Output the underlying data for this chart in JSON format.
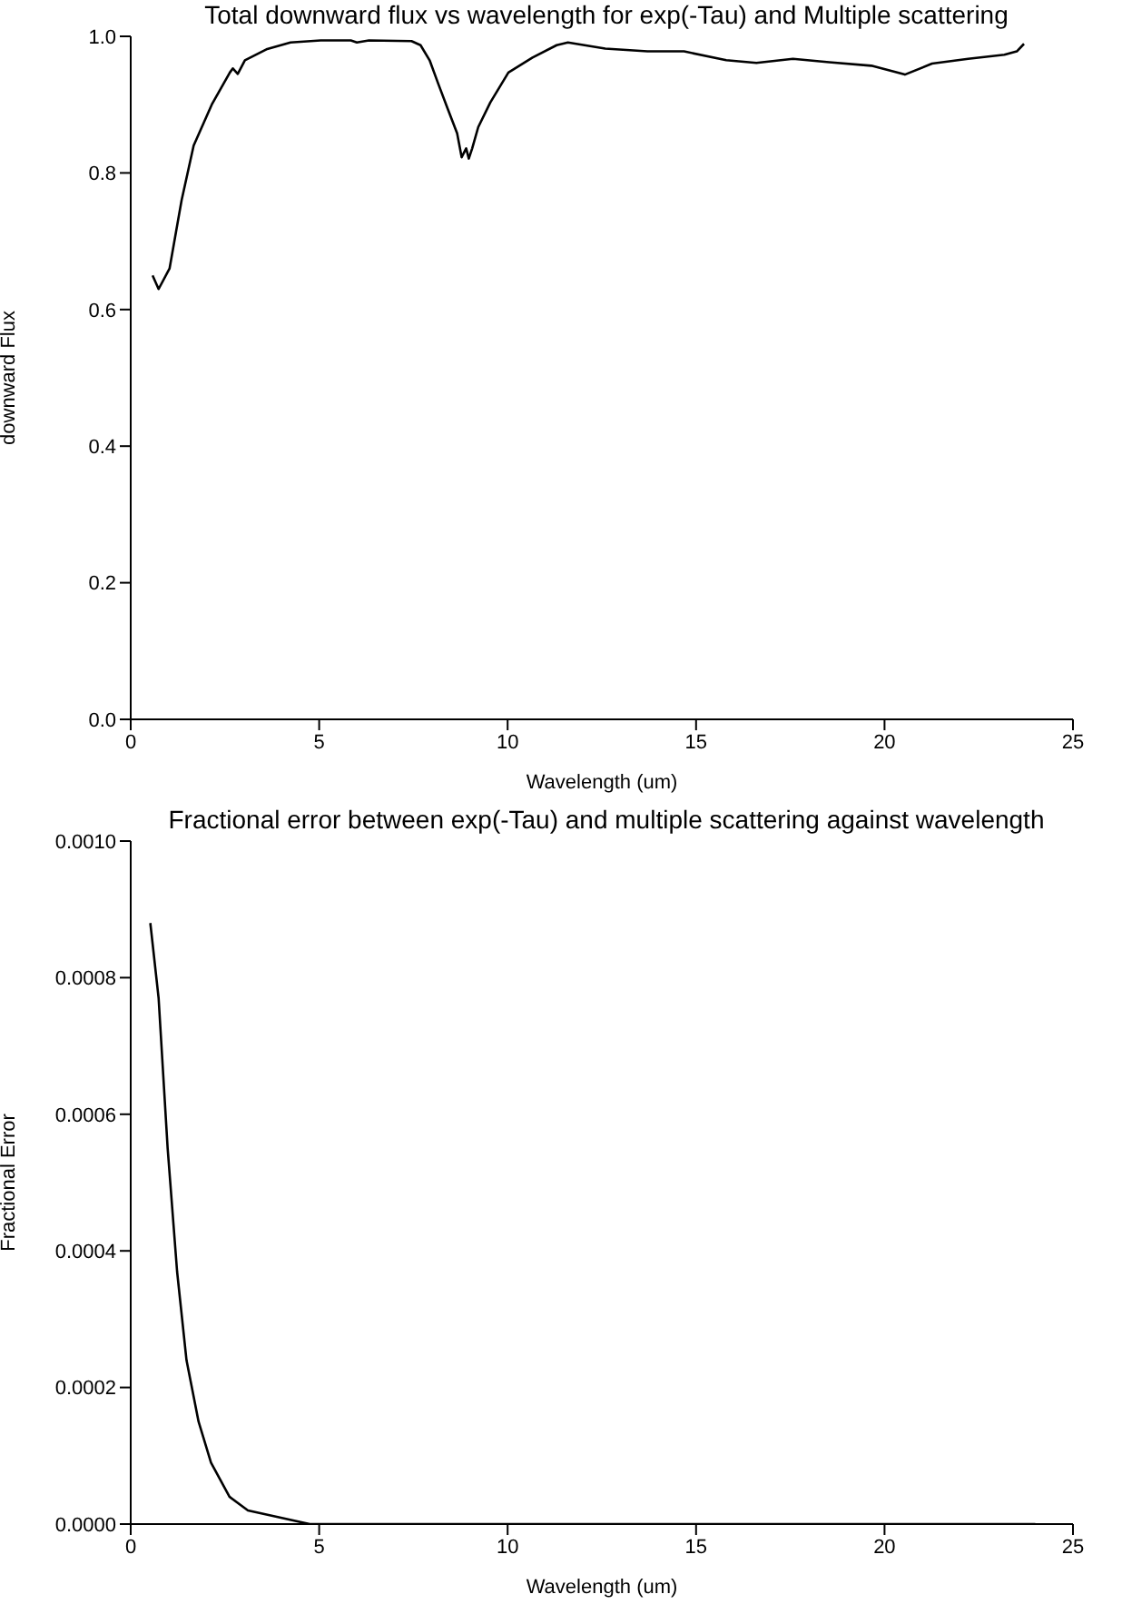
{
  "chart_data": [
    {
      "type": "line",
      "title": "Total downward flux vs wavelength for exp(-Tau) and Multiple scattering",
      "xlabel": "Wavelength (um)",
      "ylabel": "downward Flux",
      "xlim": [
        0,
        25
      ],
      "xticks": [
        0,
        5,
        10,
        15,
        20,
        25
      ],
      "ylim": [
        0,
        1
      ],
      "yticks": [
        {
          "value": 0,
          "label": "0.0"
        },
        {
          "value": 0.2,
          "label": "0.2"
        },
        {
          "value": 0.4,
          "label": "0.4"
        },
        {
          "value": 0.6,
          "label": "0.6"
        },
        {
          "value": 0.8,
          "label": "0.8"
        },
        {
          "value": 1,
          "label": "1.0"
        }
      ],
      "marker": "none",
      "line_style": "solid",
      "series": [
        {
          "color": "#000000",
          "x": [
            0.58,
            0.74,
            1.03,
            1.35,
            1.67,
            2.15,
            2.63,
            2.71,
            2.84,
            3.03,
            3.6,
            4.24,
            5.04,
            5.84,
            6.0,
            6.32,
            7.45,
            7.69,
            7.93,
            8.17,
            8.41,
            8.66,
            8.78,
            8.9,
            8.97,
            9.06,
            9.22,
            9.54,
            10.02,
            10.66,
            11.3,
            11.6,
            12.59,
            13.71,
            14.68,
            15.8,
            16.6,
            17.57,
            18.53,
            19.65,
            20.54,
            21.26,
            22.22,
            23.18,
            23.51,
            23.7
          ],
          "values": [
            0.65,
            0.63,
            0.66,
            0.76,
            0.84,
            0.9,
            0.947,
            0.953,
            0.945,
            0.965,
            0.981,
            0.991,
            0.994,
            0.994,
            0.991,
            0.994,
            0.993,
            0.987,
            0.965,
            0.929,
            0.894,
            0.858,
            0.823,
            0.836,
            0.821,
            0.836,
            0.867,
            0.903,
            0.947,
            0.969,
            0.987,
            0.991,
            0.982,
            0.978,
            0.978,
            0.965,
            0.961,
            0.967,
            0.962,
            0.957,
            0.944,
            0.96,
            0.967,
            0.973,
            0.978,
            0.989
          ]
        }
      ]
    },
    {
      "type": "line",
      "title": "Fractional error between exp(-Tau) and multiple scattering against wavelength",
      "xlabel": "Wavelength (um)",
      "ylabel": "Fractional Error",
      "xlim": [
        0,
        25
      ],
      "xticks": [
        0,
        5,
        10,
        15,
        20,
        25
      ],
      "ylim": [
        0,
        0.001
      ],
      "yticks": [
        {
          "value": 0,
          "label": "0.0000"
        },
        {
          "value": 0.0002,
          "label": "0.0002"
        },
        {
          "value": 0.0004,
          "label": "0.0004"
        },
        {
          "value": 0.0006,
          "label": "0.0006"
        },
        {
          "value": 0.0008,
          "label": "0.0008"
        },
        {
          "value": 0.001,
          "label": "0.0010"
        }
      ],
      "marker": "none",
      "line_style": "solid",
      "series": [
        {
          "color": "#000000",
          "x": [
            0.52,
            0.74,
            0.98,
            1.23,
            1.48,
            1.8,
            2.13,
            2.62,
            3.11,
            3.93,
            4.75,
            6,
            8,
            10,
            12,
            14,
            16,
            18,
            20,
            22,
            24
          ],
          "values": [
            0.00088,
            0.00077,
            0.00055,
            0.00037,
            0.00024,
            0.00015,
            9e-05,
            4e-05,
            2e-05,
            1e-05,
            0,
            0,
            0,
            0,
            0,
            0,
            0,
            0,
            0,
            0,
            0
          ]
        }
      ]
    }
  ]
}
